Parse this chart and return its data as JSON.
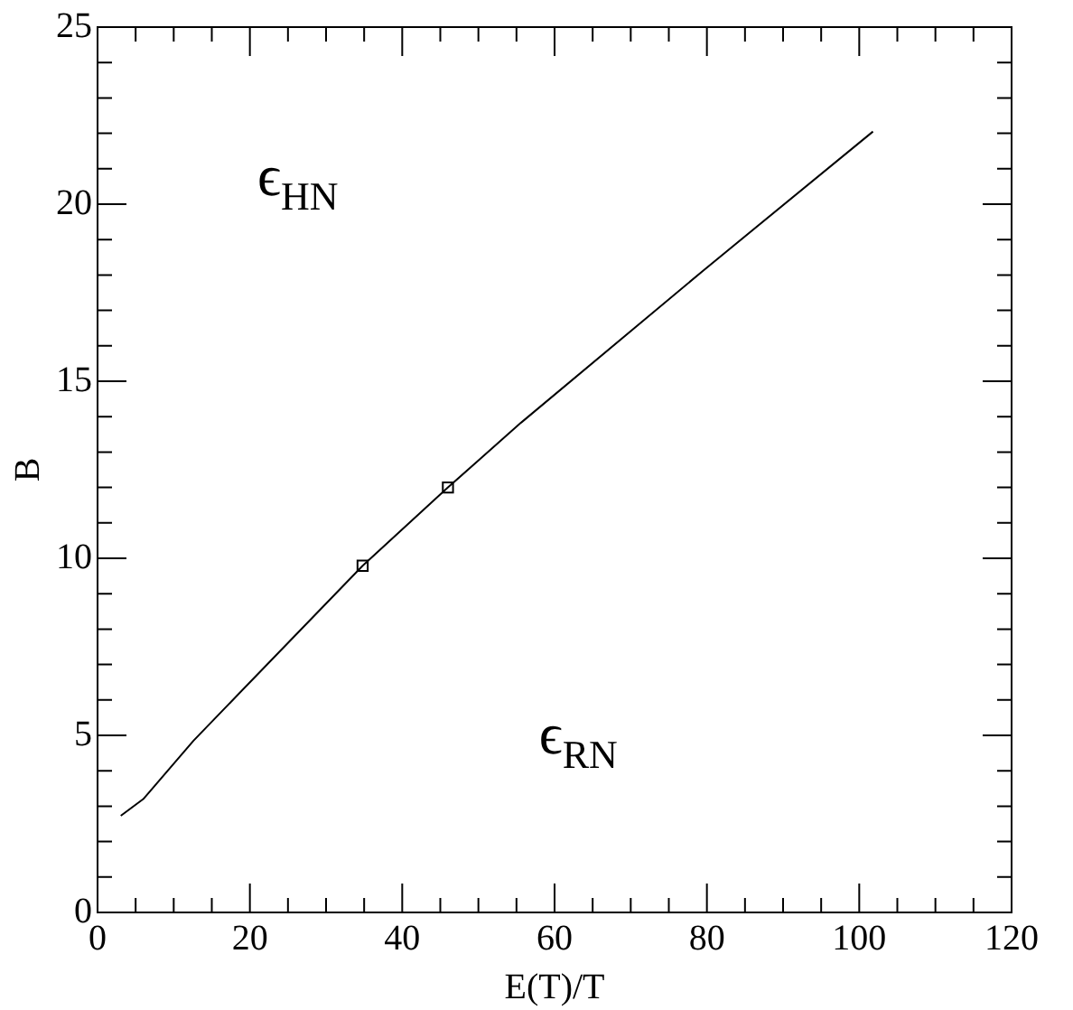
{
  "chart_data": {
    "type": "line",
    "xlabel": "E(T)/T",
    "ylabel": "B",
    "xlim": [
      0,
      120
    ],
    "ylim": [
      0,
      25
    ],
    "xticks": [
      0,
      {
        "value": 5,
        "label": null
      },
      {
        "value": 10,
        "label": null
      },
      {
        "value": 15,
        "label": null
      },
      20,
      {
        "value": 25,
        "label": null
      },
      {
        "value": 30,
        "label": null
      },
      {
        "value": 35,
        "label": null
      },
      40,
      {
        "value": 45,
        "label": null
      },
      {
        "value": 50,
        "label": null
      },
      {
        "value": 55,
        "label": null
      },
      60,
      {
        "value": 65,
        "label": null
      },
      {
        "value": 70,
        "label": null
      },
      {
        "value": 75,
        "label": null
      },
      80,
      {
        "value": 85,
        "label": null
      },
      {
        "value": 90,
        "label": null
      },
      {
        "value": 95,
        "label": null
      },
      100,
      {
        "value": 105,
        "label": null
      },
      {
        "value": 110,
        "label": null
      },
      {
        "value": 115,
        "label": null
      },
      120
    ],
    "yticks": [
      0,
      {
        "value": 1,
        "label": null
      },
      {
        "value": 2,
        "label": null
      },
      {
        "value": 3,
        "label": null
      },
      {
        "value": 4,
        "label": null
      },
      5,
      {
        "value": 6,
        "label": null
      },
      {
        "value": 7,
        "label": null
      },
      {
        "value": 8,
        "label": null
      },
      {
        "value": 9,
        "label": null
      },
      10,
      {
        "value": 11,
        "label": null
      },
      {
        "value": 12,
        "label": null
      },
      {
        "value": 13,
        "label": null
      },
      {
        "value": 14,
        "label": null
      },
      15,
      {
        "value": 16,
        "label": null
      },
      {
        "value": 17,
        "label": null
      },
      {
        "value": 18,
        "label": null
      },
      {
        "value": 19,
        "label": null
      },
      20,
      {
        "value": 21,
        "label": null
      },
      {
        "value": 22,
        "label": null
      },
      {
        "value": 23,
        "label": null
      },
      {
        "value": 24,
        "label": null
      },
      25
    ],
    "grid": false,
    "legend": false,
    "series": [
      {
        "color": "#000000",
        "marker": "none",
        "x": [
          3.05,
          6.0,
          12.6,
          20,
          34.8,
          46.0,
          55.6,
          79.6,
          101.8
        ],
        "values": [
          2.73,
          3.2,
          4.85,
          6.5,
          9.79,
          12.0,
          13.83,
          18.14,
          22.05
        ]
      },
      {
        "type": "scatter",
        "color": "#000000",
        "marker": "square",
        "x": [
          34.8,
          46.0
        ],
        "values": [
          9.79,
          12.0
        ]
      }
    ],
    "annotations": [
      "ϵ$_{HN}$",
      "ϵ$_{RN}$"
    ]
  }
}
